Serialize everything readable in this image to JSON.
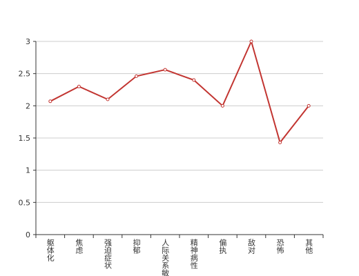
{
  "chart_data": {
    "type": "line",
    "categories": [
      "躯体化",
      "焦虑",
      "强迫症状",
      "抑郁",
      "人际关系敏感",
      "精神病性",
      "偏执",
      "敌对",
      "恐怖",
      "其他"
    ],
    "series": [
      {
        "color": "#c23531",
        "values": [
          2.07,
          2.3,
          2.1,
          2.46,
          2.56,
          2.4,
          2.0,
          3.0,
          1.43,
          2.0
        ]
      }
    ],
    "ylim": [
      0,
      3
    ],
    "yticks": [
      0,
      0.5,
      1,
      1.5,
      2,
      2.5,
      3
    ],
    "grid": true
  }
}
